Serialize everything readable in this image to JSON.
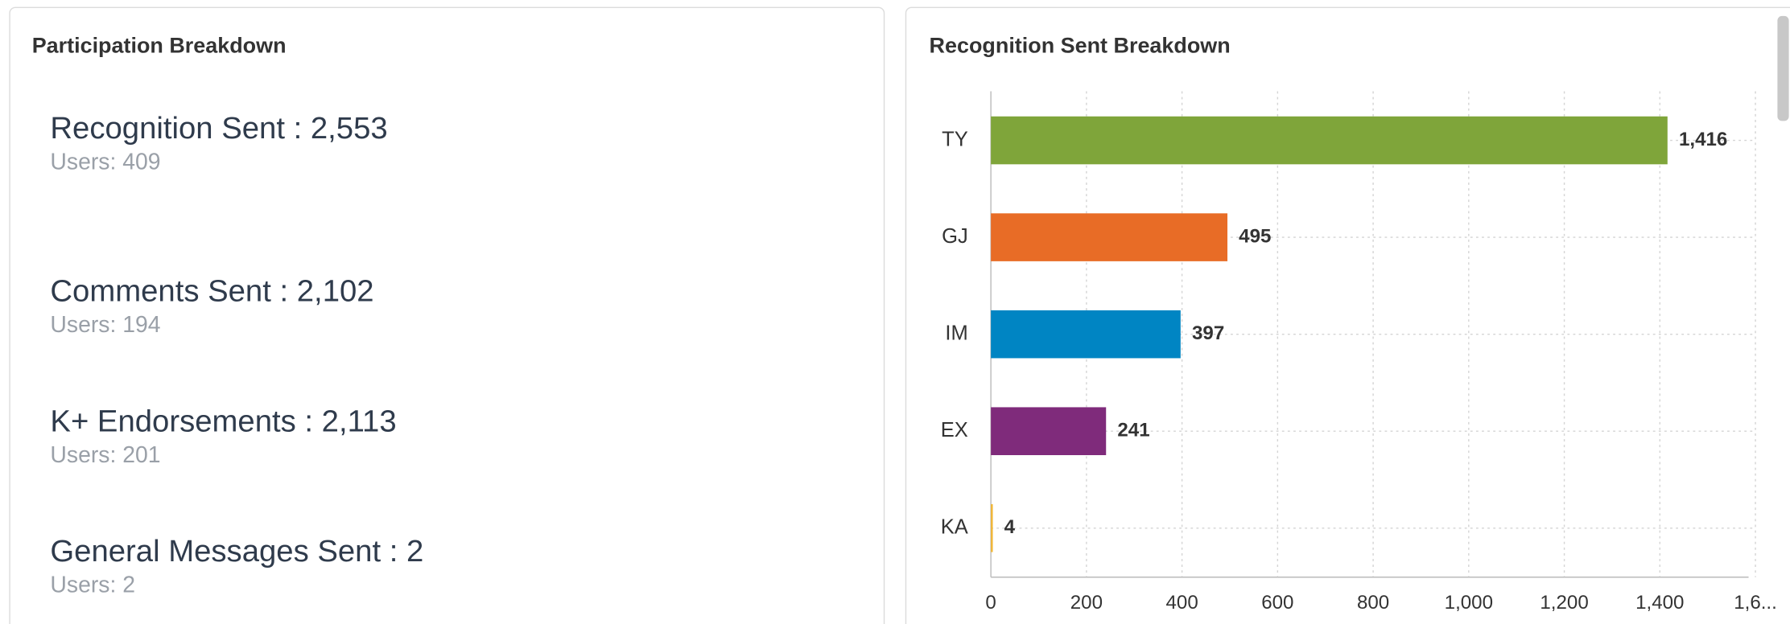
{
  "participation": {
    "title": "Participation Breakdown",
    "items": [
      {
        "label": "Recognition Sent : 2,553",
        "users": "Users: 409"
      },
      {
        "label": "Comments Sent : 2,102",
        "users": "Users: 194"
      },
      {
        "label": "K+ Endorsements : 2,113",
        "users": "Users: 201"
      },
      {
        "label": "General Messages Sent : 2",
        "users": "Users: 2"
      }
    ]
  },
  "chart_data": {
    "type": "bar",
    "orientation": "horizontal",
    "title": "Recognition Sent Breakdown",
    "categories": [
      "TY",
      "GJ",
      "IM",
      "EX",
      "KA"
    ],
    "values": [
      1416,
      495,
      397,
      241,
      4
    ],
    "value_labels": [
      "1,416",
      "495",
      "397",
      "241",
      "4"
    ],
    "colors": [
      "#7fa53a",
      "#e86c26",
      "#0085c3",
      "#7f2b7b",
      "#f2b632"
    ],
    "xlim": [
      0,
      1600
    ],
    "xticks": [
      0,
      200,
      400,
      600,
      800,
      {
        "value": 1000,
        "label": "1,000"
      },
      {
        "value": 1200,
        "label": "1,200"
      },
      {
        "value": 1400,
        "label": "1,400"
      },
      {
        "value": 1600,
        "label": "1,6..."
      }
    ],
    "grid": true
  }
}
